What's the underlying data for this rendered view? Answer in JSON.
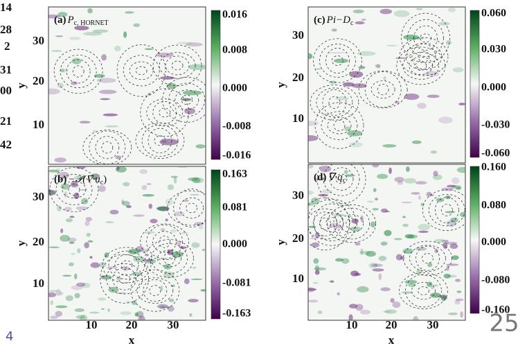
{
  "left_fragments": [
    "14",
    "28",
    "2",
    "31",
    "00",
    "21",
    "42"
  ],
  "panels": [
    {
      "label": "(a)",
      "main": "P",
      "sub": "c, HORNET",
      "suffix": null,
      "yticks": [
        "30",
        "20",
        "10"
      ],
      "xticks": null,
      "xlabel": null,
      "ylabel": "y",
      "colorbar": [
        "0.016",
        "0.008",
        "0.000",
        "-0.008",
        "-0.016"
      ]
    },
    {
      "label": "(c)",
      "main": "Pi−D",
      "sub": "c",
      "suffix": null,
      "yticks": [
        "30",
        "20",
        "10"
      ],
      "xticks": null,
      "xlabel": null,
      "ylabel": "y",
      "colorbar": [
        "0.060",
        "0.030",
        "0.000",
        "-0.030",
        "-0.060"
      ]
    },
    {
      "label": "(b)",
      "main": "−𝒫(∇·u",
      "sub": "c",
      "suffix": ")",
      "yticks": [
        "30",
        "20",
        "10"
      ],
      "xticks": [
        "10",
        "20",
        "30"
      ],
      "xlabel": "x",
      "ylabel": "y",
      "colorbar": [
        "0.163",
        "0.081",
        "0.000",
        "-0.081",
        "-0.163"
      ]
    },
    {
      "label": "(d)",
      "main": "∇·q",
      "sub": "c",
      "suffix": null,
      "yticks": [
        "30",
        "20",
        "10"
      ],
      "xticks": [
        "10",
        "20",
        "30"
      ],
      "xlabel": "x",
      "ylabel": "y",
      "colorbar": [
        "0.160",
        "0.080",
        "0.000",
        "-0.080",
        "-0.160"
      ]
    }
  ],
  "footer": {
    "left_number": "4",
    "page_number": "25"
  }
}
